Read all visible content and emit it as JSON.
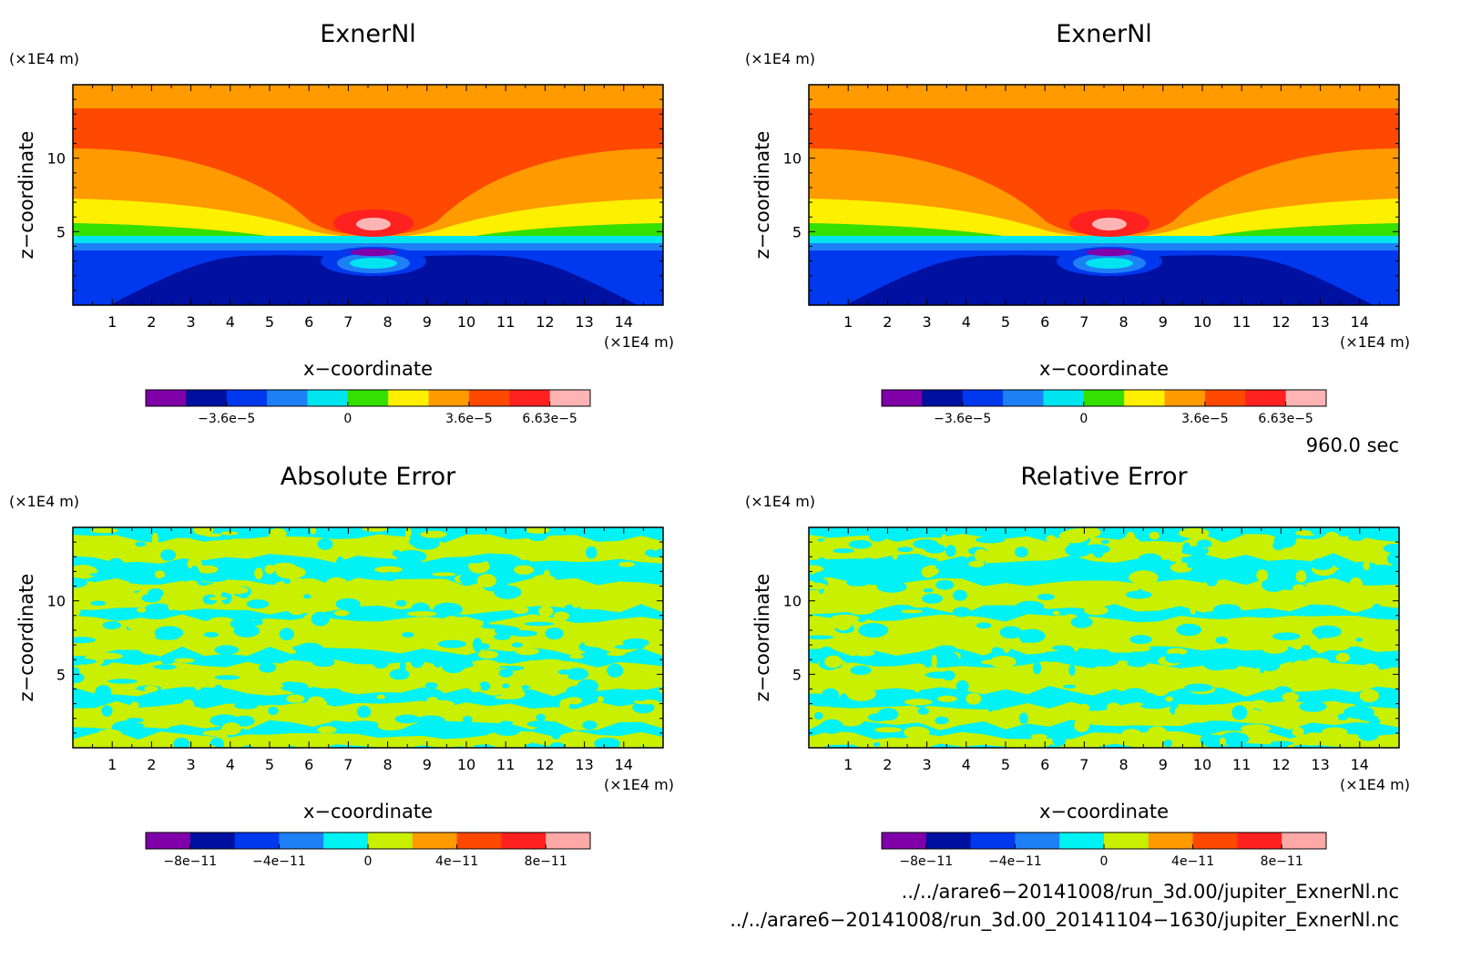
{
  "panels": [
    {
      "title": "ExnerNl",
      "type": "smooth",
      "xlabel": "x−coordinate",
      "ylabel": "z−coordinate",
      "xunit": "(×1E4 m)",
      "yunit": "(×1E4 m)",
      "colorbar": {
        "colors": [
          "#7f00a8",
          "#0010a0",
          "#0038ee",
          "#1e80f5",
          "#00e4f0",
          "#33e000",
          "#fff000",
          "#ff9a00",
          "#ff4800",
          "#ff2020",
          "#ffb4b4"
        ],
        "ticks": [
          "−3.6e−5",
          "0",
          "3.6e−5",
          "6.63e−5"
        ]
      }
    },
    {
      "title": "ExnerNl",
      "type": "smooth",
      "xlabel": "x−coordinate",
      "ylabel": "z−coordinate",
      "xunit": "(×1E4 m)",
      "yunit": "(×1E4 m)",
      "colorbar": {
        "colors": [
          "#7f00a8",
          "#0010a0",
          "#0038ee",
          "#1e80f5",
          "#00e4f0",
          "#33e000",
          "#fff000",
          "#ff9a00",
          "#ff4800",
          "#ff2020",
          "#ffb4b4"
        ],
        "ticks": [
          "−3.6e−5",
          "0",
          "3.6e−5",
          "6.63e−5"
        ]
      }
    },
    {
      "title": "Absolute Error",
      "type": "noise",
      "xlabel": "x−coordinate",
      "ylabel": "z−coordinate",
      "xunit": "(×1E4 m)",
      "yunit": "(×1E4 m)",
      "colorbar": {
        "colors": [
          "#7f00a8",
          "#0010a0",
          "#0038ee",
          "#1e80f5",
          "#00f2f5",
          "#c8f000",
          "#ff9a00",
          "#ff4800",
          "#ff2020",
          "#ffa8a8"
        ],
        "ticks": [
          "−8e−11",
          "−4e−11",
          "0",
          "4e−11",
          "8e−11"
        ]
      }
    },
    {
      "title": "Relative Error",
      "type": "noise",
      "xlabel": "x−coordinate",
      "ylabel": "z−coordinate",
      "xunit": "(×1E4 m)",
      "yunit": "(×1E4 m)",
      "colorbar": {
        "colors": [
          "#7f00a8",
          "#0010a0",
          "#0038ee",
          "#1e80f5",
          "#00f2f5",
          "#c8f000",
          "#ff9a00",
          "#ff4800",
          "#ff2020",
          "#ffa8a8"
        ],
        "ticks": [
          "−8e−11",
          "−4e−11",
          "0",
          "4e−11",
          "8e−11"
        ]
      }
    }
  ],
  "xticks": [
    1,
    2,
    3,
    4,
    5,
    6,
    7,
    8,
    9,
    10,
    11,
    12,
    13,
    14
  ],
  "yticks": [
    5,
    10
  ],
  "time_label": "960.0 sec",
  "file_paths": [
    "../../arare6−20141008/run_3d.00/jupiter_ExnerNl.nc",
    "../../arare6−20141008/run_3d.00_20141104−1630/jupiter_ExnerNl.nc"
  ],
  "chart_data": [
    {
      "type": "heatmap",
      "title": "ExnerNl",
      "xlabel": "x−coordinate",
      "ylabel": "z−coordinate",
      "xlim": [
        0,
        15
      ],
      "ylim": [
        0,
        15
      ],
      "units": "×1E4 m",
      "colorbar_ticks": [
        "−3.6e−5",
        "0",
        "3.6e−5",
        "6.63e−5"
      ],
      "colorbar_range": [
        -6e-05,
        6.63e-05
      ]
    },
    {
      "type": "heatmap",
      "title": "ExnerNl",
      "xlabel": "x−coordinate",
      "ylabel": "z−coordinate",
      "xlim": [
        0,
        15
      ],
      "ylim": [
        0,
        15
      ],
      "units": "×1E4 m",
      "colorbar_ticks": [
        "−3.6e−5",
        "0",
        "3.6e−5",
        "6.63e−5"
      ],
      "colorbar_range": [
        -6e-05,
        6.63e-05
      ]
    },
    {
      "type": "heatmap",
      "title": "Absolute Error",
      "xlabel": "x−coordinate",
      "ylabel": "z−coordinate",
      "xlim": [
        0,
        15
      ],
      "ylim": [
        0,
        15
      ],
      "units": "×1E4 m",
      "colorbar_ticks": [
        "−8e−11",
        "−4e−11",
        "0",
        "4e−11",
        "8e−11"
      ],
      "colorbar_range": [
        -1e-10,
        1e-10
      ]
    },
    {
      "type": "heatmap",
      "title": "Relative Error",
      "xlabel": "x−coordinate",
      "ylabel": "z−coordinate",
      "xlim": [
        0,
        15
      ],
      "ylim": [
        0,
        15
      ],
      "units": "×1E4 m",
      "colorbar_ticks": [
        "−8e−11",
        "−4e−11",
        "0",
        "4e−11",
        "8e−11"
      ],
      "colorbar_range": [
        -1e-10,
        1e-10
      ]
    }
  ]
}
